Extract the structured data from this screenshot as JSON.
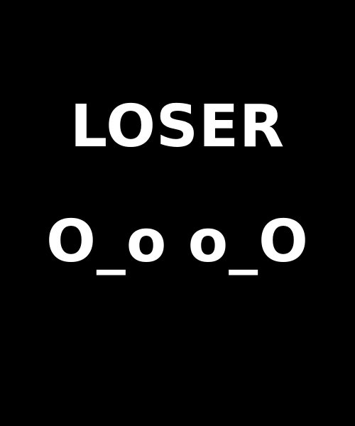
{
  "screen": {
    "title": "LOSER",
    "faces": "O_o o_O",
    "colors": {
      "background": "#000000",
      "text": "#ffffff"
    }
  }
}
